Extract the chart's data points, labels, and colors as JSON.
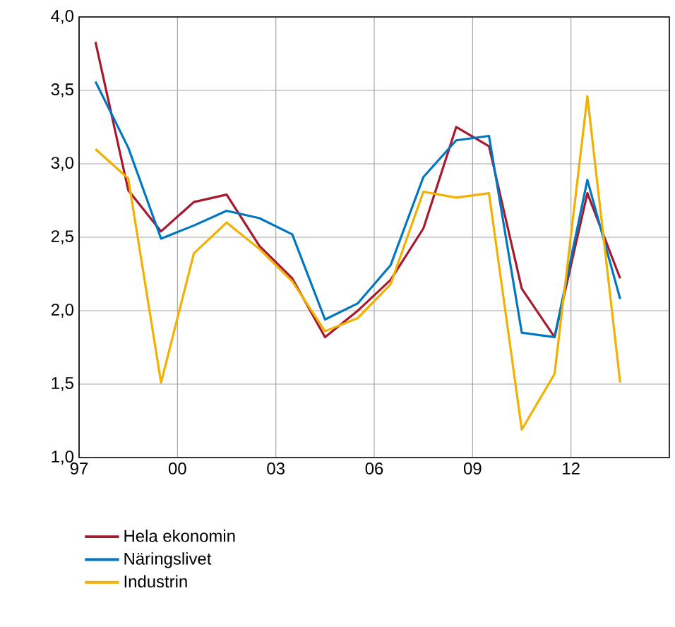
{
  "chart_data": {
    "type": "line",
    "x": [
      1997.5,
      1998.5,
      1999.5,
      2000.5,
      2001.5,
      2002.5,
      2003.5,
      2004.5,
      2005.5,
      2006.5,
      2007.5,
      2008.5,
      2009.5,
      2010.5,
      2011.5,
      2012.5,
      2013.5
    ],
    "series": [
      {
        "name": "Hela ekonomin",
        "color": "#a6192e",
        "values": [
          3.83,
          2.82,
          2.54,
          2.74,
          2.79,
          2.44,
          2.22,
          1.82,
          2.0,
          2.21,
          2.56,
          3.25,
          3.12,
          2.15,
          1.82,
          2.8,
          2.22
        ]
      },
      {
        "name": "Näringslivet",
        "color": "#0077c0",
        "values": [
          3.56,
          3.11,
          2.49,
          2.58,
          2.68,
          2.63,
          2.52,
          1.94,
          2.05,
          2.31,
          2.91,
          3.16,
          3.19,
          1.85,
          1.82,
          2.89,
          2.08
        ]
      },
      {
        "name": "Industrin",
        "color": "#f2b100",
        "values": [
          3.1,
          2.9,
          1.51,
          2.39,
          2.6,
          2.42,
          2.2,
          1.86,
          1.95,
          2.18,
          2.81,
          2.77,
          2.8,
          1.19,
          1.57,
          3.46,
          1.51
        ]
      }
    ],
    "xlim": [
      1997,
      2015
    ],
    "ylim": [
      1,
      4
    ],
    "xticks": [
      {
        "value": 1997,
        "label": "97"
      },
      {
        "value": 2000,
        "label": "00"
      },
      {
        "value": 2003,
        "label": "03"
      },
      {
        "value": 2006,
        "label": "06"
      },
      {
        "value": 2009,
        "label": "09"
      },
      {
        "value": 2012,
        "label": "12"
      }
    ],
    "yticks": [
      {
        "value": 1,
        "label": "1,0"
      },
      {
        "value": 1.5,
        "label": "1,5"
      },
      {
        "value": 2,
        "label": "2,0"
      },
      {
        "value": 2.5,
        "label": "2,5"
      },
      {
        "value": 3,
        "label": "3,0"
      },
      {
        "value": 3.5,
        "label": "3,5"
      },
      {
        "value": 4,
        "label": "4,0"
      }
    ],
    "grid": true,
    "legend": "bottom",
    "marker": "none",
    "line_style": "solid"
  }
}
